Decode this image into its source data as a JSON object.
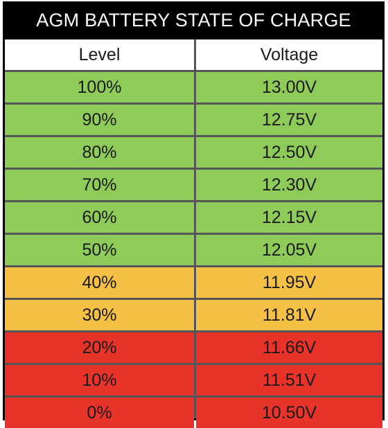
{
  "chart_data": {
    "type": "table",
    "title": "AGM BATTERY STATE OF CHARGE",
    "columns": [
      "Level",
      "Voltage"
    ],
    "rows": [
      {
        "level": "100%",
        "voltage": "13.00V",
        "band": "green"
      },
      {
        "level": "90%",
        "voltage": "12.75V",
        "band": "green"
      },
      {
        "level": "80%",
        "voltage": "12.50V",
        "band": "green"
      },
      {
        "level": "70%",
        "voltage": "12.30V",
        "band": "green"
      },
      {
        "level": "60%",
        "voltage": "12.15V",
        "band": "green"
      },
      {
        "level": "50%",
        "voltage": "12.05V",
        "band": "green"
      },
      {
        "level": "40%",
        "voltage": "11.95V",
        "band": "yellow"
      },
      {
        "level": "30%",
        "voltage": "11.81V",
        "band": "yellow"
      },
      {
        "level": "20%",
        "voltage": "11.66V",
        "band": "red"
      },
      {
        "level": "10%",
        "voltage": "11.51V",
        "band": "red"
      },
      {
        "level": "0%",
        "voltage": "10.50V",
        "band": "red"
      }
    ]
  },
  "colors": {
    "title_bg": "#000000",
    "title_text": "#ffffff",
    "header_bg": "#ffffff",
    "green": "#8fcb59",
    "yellow": "#f5c046",
    "red": "#e8332a",
    "border": "#555555"
  }
}
